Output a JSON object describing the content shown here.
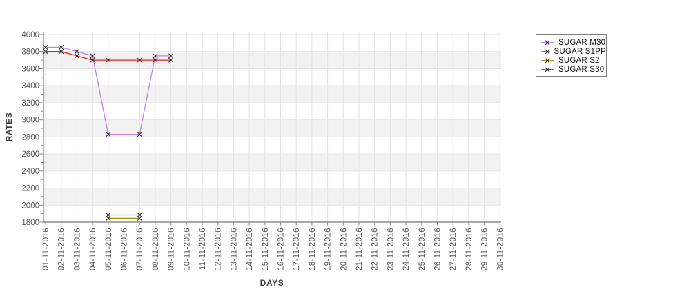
{
  "page": {
    "background": "#ffffff"
  },
  "chart_data": {
    "type": "line",
    "title": "",
    "xlabel": "DAYS",
    "ylabel": "RATES",
    "legend_position": "right",
    "grid": true,
    "marker": "x",
    "x_categories": [
      "01-11-2016",
      "02-11-2016",
      "03-11-2016",
      "04-11-2016",
      "05-11-2016",
      "06-11-2016",
      "07-11-2016",
      "08-11-2016",
      "09-11-2016",
      "10-11-2016",
      "11-11-2016",
      "12-11-2016",
      "13-11-2016",
      "14-11-2016",
      "15-11-2016",
      "16-11-2016",
      "17-11-2016",
      "18-11-2016",
      "19-11-2016",
      "20-11-2016",
      "21-11-2016",
      "22-11-2016",
      "23-11-2016",
      "24-11-2016",
      "25-11-2016",
      "26-11-2016",
      "27-11-2016",
      "28-11-2016",
      "29-11-2016",
      "30-11-2016"
    ],
    "y_axis": {
      "min": 1800,
      "max": 4000,
      "major_step": 200,
      "minor_step": 100,
      "tick_labels": [
        "1800",
        "2000",
        "2200",
        "2400",
        "2600",
        "2800",
        "3000",
        "3200",
        "3400",
        "3600",
        "3800",
        "4000"
      ]
    },
    "series": [
      {
        "name": "SUGAR M30",
        "color": "#bf7fdf",
        "points": [
          {
            "x": "01-11-2016",
            "y": 3850
          },
          {
            "x": "02-11-2016",
            "y": 3850
          },
          {
            "x": "03-11-2016",
            "y": 3800
          },
          {
            "x": "04-11-2016",
            "y": 3750
          },
          {
            "x": "05-11-2016",
            "y": 2830
          },
          {
            "x": "07-11-2016",
            "y": 2830
          },
          {
            "x": "08-11-2016",
            "y": 3750
          },
          {
            "x": "09-11-2016",
            "y": 3750
          }
        ]
      },
      {
        "name": "SUGAR S1PP",
        "color": "#c05c7c",
        "points": [
          {
            "x": "05-11-2016",
            "y": 1885
          },
          {
            "x": "07-11-2016",
            "y": 1885
          }
        ]
      },
      {
        "name": "SUGAR S2",
        "color": "#998f00",
        "points": [
          {
            "x": "05-11-2016",
            "y": 1845
          },
          {
            "x": "07-11-2016",
            "y": 1845
          }
        ]
      },
      {
        "name": "SUGAR S30",
        "color": "#dd2222",
        "points": [
          {
            "x": "01-11-2016",
            "y": 3800
          },
          {
            "x": "02-11-2016",
            "y": 3800
          },
          {
            "x": "03-11-2016",
            "y": 3750
          },
          {
            "x": "04-11-2016",
            "y": 3700
          },
          {
            "x": "05-11-2016",
            "y": 3700
          },
          {
            "x": "07-11-2016",
            "y": 3700
          },
          {
            "x": "08-11-2016",
            "y": 3700
          },
          {
            "x": "09-11-2016",
            "y": 3700
          }
        ]
      }
    ],
    "colors": {
      "band": "#f2f2f2",
      "grid": "#e2e2e2",
      "axis": "#8c8c8c",
      "tick_text": "#5a5a5a",
      "marker": "#1a1a1a"
    }
  }
}
